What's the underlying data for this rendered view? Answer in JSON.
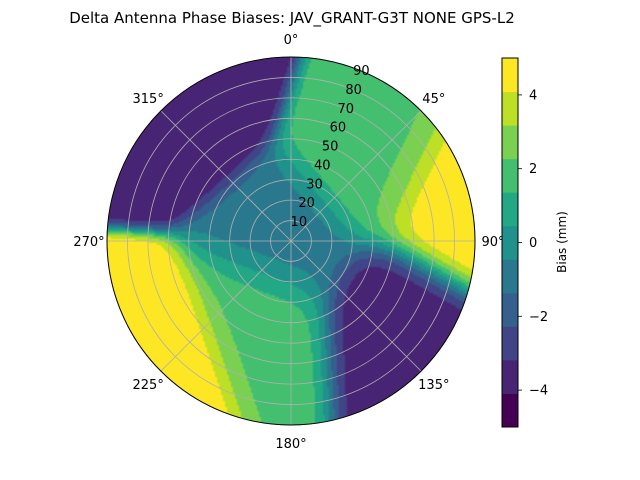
{
  "chart_data": {
    "type": "heatmap",
    "subtype": "polar filled contour",
    "title": "Delta Antenna Phase Biases: JAV_GRANT-G3T   NONE GPS-L2",
    "angular_axis": {
      "direction": "clockwise",
      "zero_location": "top",
      "ticks": [
        0,
        45,
        90,
        135,
        180,
        225,
        270,
        315
      ],
      "tick_labels": [
        "0°",
        "45°",
        "90°",
        "135°",
        "180°",
        "225°",
        "270°",
        "315°"
      ]
    },
    "radial_axis": {
      "range": [
        0,
        90
      ],
      "ticks": [
        10,
        20,
        30,
        40,
        50,
        60,
        70,
        80,
        90
      ],
      "tick_labels": [
        "10",
        "20",
        "30",
        "40",
        "50",
        "60",
        "70",
        "80",
        "90"
      ]
    },
    "grid": true,
    "colorbar": {
      "label": "Bias (mm)",
      "range": [
        -5,
        5
      ],
      "ticks": [
        -4,
        -2,
        0,
        2,
        4
      ],
      "tick_labels": [
        "−4",
        "−2",
        "0",
        "2",
        "4"
      ],
      "levels": [
        -5,
        -4.5,
        -4,
        -3.5,
        -3,
        -2.5,
        -2,
        -1.5,
        -1,
        -0.5,
        0,
        0.5,
        1,
        1.5,
        2,
        2.5,
        3,
        3.5,
        4,
        4.5,
        5
      ],
      "colors": [
        "#440154",
        "#482475",
        "#414487",
        "#355f8d",
        "#2a788e",
        "#21918c",
        "#22a884",
        "#44bf70",
        "#7ad151",
        "#bddf26",
        "#fde725"
      ]
    },
    "approximate_field_features": [
      {
        "azimuth": 80,
        "radius": 78,
        "bias": 5
      },
      {
        "azimuth": 230,
        "radius": 85,
        "bias": 5
      },
      {
        "azimuth": 125,
        "radius": 60,
        "bias": -4
      },
      {
        "azimuth": 318,
        "radius": 84,
        "bias": -4
      },
      {
        "azimuth": 50,
        "radius": 50,
        "bias": 2
      },
      {
        "azimuth": 200,
        "radius": 40,
        "bias": 2
      },
      {
        "azimuth": 0,
        "radius": 0,
        "bias": -1
      }
    ]
  }
}
